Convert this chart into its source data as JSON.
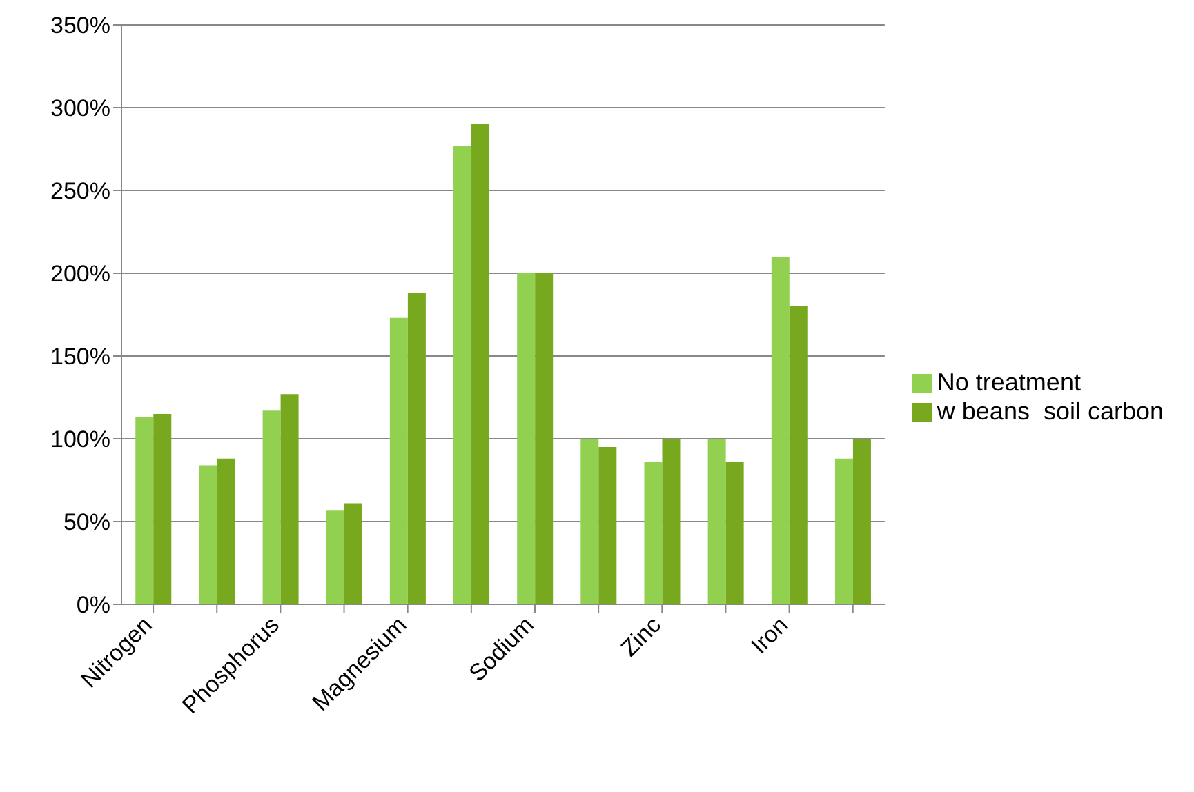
{
  "chart_data": {
    "type": "bar",
    "categories": [
      "Nitrogen",
      null,
      "Phosphorus",
      null,
      "Magnesium",
      null,
      "Sodium",
      null,
      "Zinc",
      null,
      "Iron",
      null
    ],
    "series": [
      {
        "name": "No treatment",
        "color": "#92d050",
        "values": [
          113,
          84,
          117,
          57,
          173,
          277,
          200,
          100,
          86,
          100,
          210,
          88
        ]
      },
      {
        "name": "w beans  soil carbon",
        "color": "#77a81e",
        "values": [
          115,
          88,
          127,
          61,
          188,
          290,
          200,
          95,
          100,
          86,
          180,
          100
        ]
      }
    ],
    "ylim": [
      0,
      350
    ],
    "yticks": [
      {
        "value": 0,
        "label": "0%"
      },
      {
        "value": 50,
        "label": "50%"
      },
      {
        "value": 100,
        "label": "100%"
      },
      {
        "value": 150,
        "label": "150%"
      },
      {
        "value": 200,
        "label": "200%"
      },
      {
        "value": 250,
        "label": "250%"
      },
      {
        "value": 300,
        "label": "300%"
      },
      {
        "value": 350,
        "label": "350%"
      }
    ],
    "grid": "y",
    "legend": "right"
  }
}
